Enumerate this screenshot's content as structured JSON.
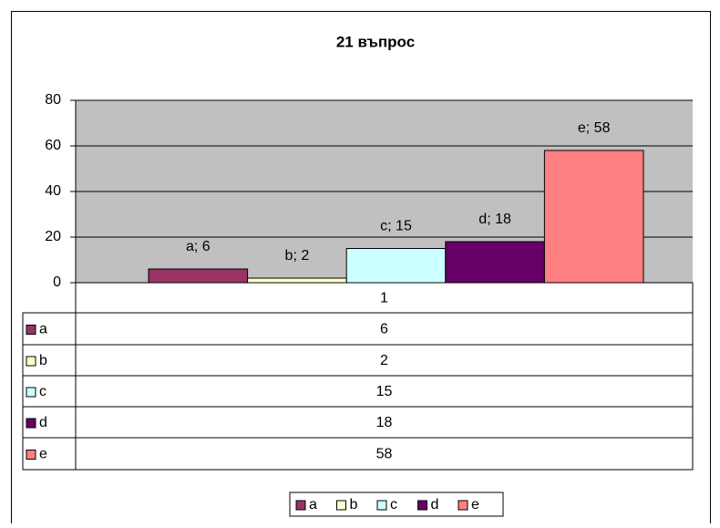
{
  "chart_data": {
    "type": "bar",
    "title": "21 въпрос",
    "categories": [
      "1"
    ],
    "series": [
      {
        "name": "a",
        "color": "#993366",
        "values": [
          6
        ],
        "value_labels": [
          "a; 6"
        ]
      },
      {
        "name": "b",
        "color": "#ffffcc",
        "values": [
          2
        ],
        "value_labels": [
          "b; 2"
        ]
      },
      {
        "name": "c",
        "color": "#ccffff",
        "values": [
          15
        ],
        "value_labels": [
          "c; 15"
        ]
      },
      {
        "name": "d",
        "color": "#660066",
        "values": [
          18
        ],
        "value_labels": [
          "d; 18"
        ]
      },
      {
        "name": "e",
        "color": "#ff8080",
        "values": [
          58
        ],
        "value_labels": [
          "e; 58"
        ]
      }
    ],
    "ylim": [
      0,
      80
    ],
    "yticks": [
      0,
      20,
      40,
      60,
      80
    ],
    "grid": true,
    "legend": "bottom",
    "data_table": true
  }
}
